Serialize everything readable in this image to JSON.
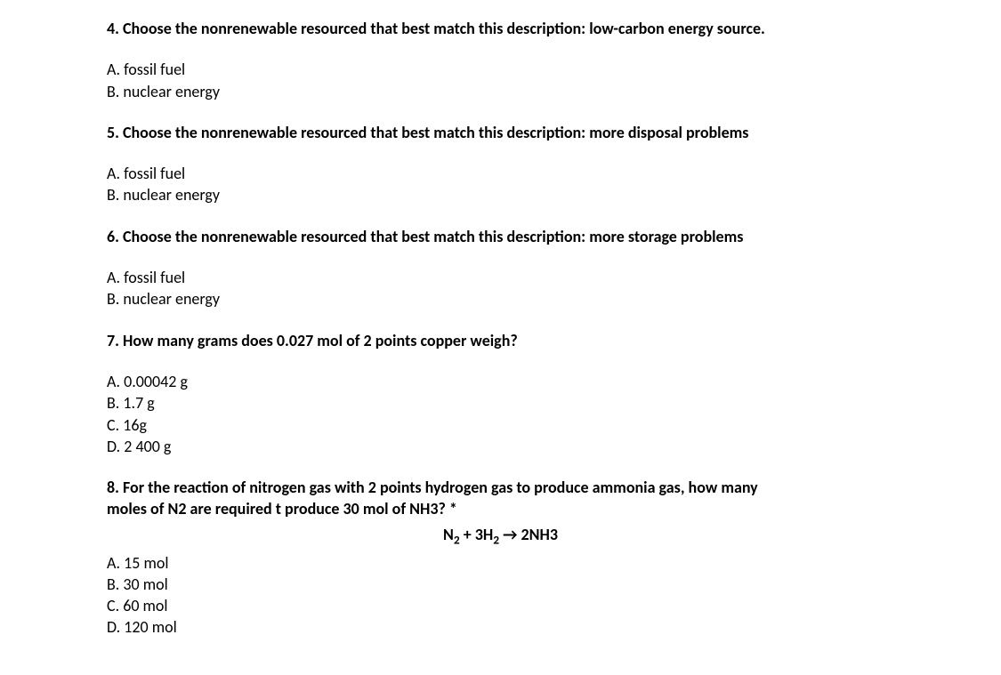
{
  "questions": {
    "q4": {
      "title": "4. Choose the nonrenewable resourced that best match this description: low-carbon energy source.",
      "options": {
        "a": "A. fossil fuel",
        "b": "B. nuclear energy"
      }
    },
    "q5": {
      "title": "5. Choose the nonrenewable resourced that best match this description: more disposal problems",
      "options": {
        "a": "A. fossil fuel",
        "b": "B. nuclear energy"
      }
    },
    "q6": {
      "title": "6. Choose the nonrenewable resourced that best match this description: more storage problems",
      "options": {
        "a": "A. fossil fuel",
        "b": "B. nuclear energy"
      }
    },
    "q7": {
      "title": "7. How many grams does 0.027 mol of 2 points copper weigh?",
      "options": {
        "a": "A. 0.00042 g",
        "b": "B. 1.7 g",
        "c": "C. 16g",
        "d": "D. 2 400 g"
      }
    },
    "q8": {
      "title_line1": "8. For the reaction of nitrogen gas with 2 points hydrogen gas to produce ammonia gas, how many",
      "title_line2": "moles of N2 are required t produce 30 mol of NH3? *",
      "equation_html": "N<sub>2</sub> + 3H<sub>2</sub> → 2NH3",
      "options": {
        "a": "A. 15 mol",
        "b": "B. 30 mol",
        "c": "C. 60 mol",
        "d": "D. 120 mol"
      }
    }
  }
}
